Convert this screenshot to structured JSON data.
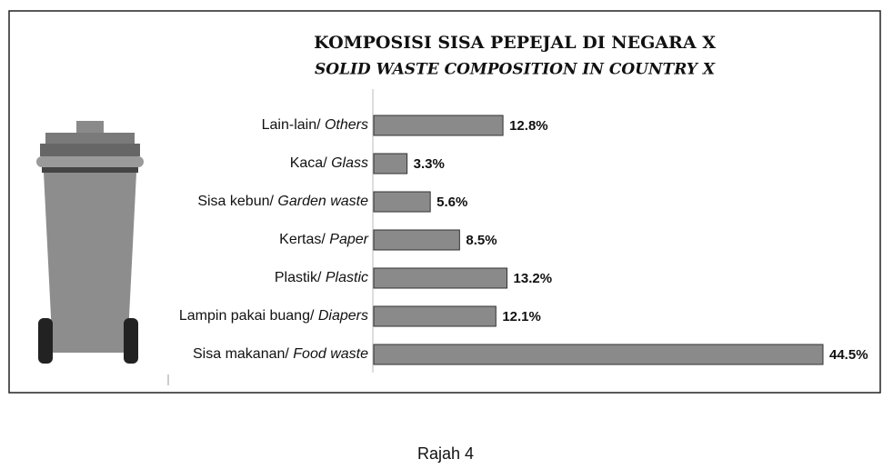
{
  "chart_data": {
    "type": "bar",
    "orientation": "horizontal",
    "title": "KOMPOSISI SISA PEPEJAL DI NEGARA X",
    "subtitle": "SOLID WASTE COMPOSITION IN COUNTRY X",
    "categories": [
      "Lain-lain/ Others",
      "Kaca/ Glass",
      "Sisa kebun/ Garden waste",
      "Kertas/ Paper",
      "Plastik/ Plastic",
      "Lampin pakai buang/ Diapers",
      "Sisa makanan/ Food waste"
    ],
    "values": [
      12.8,
      3.3,
      5.6,
      8.5,
      13.2,
      12.1,
      44.5
    ],
    "value_labels": [
      "12.8%",
      "3.3%",
      "5.6%",
      "8.5%",
      "13.2%",
      "12.1%",
      "44.5%"
    ],
    "color": "#8a8a8a"
  },
  "caption": "Rajah 4"
}
